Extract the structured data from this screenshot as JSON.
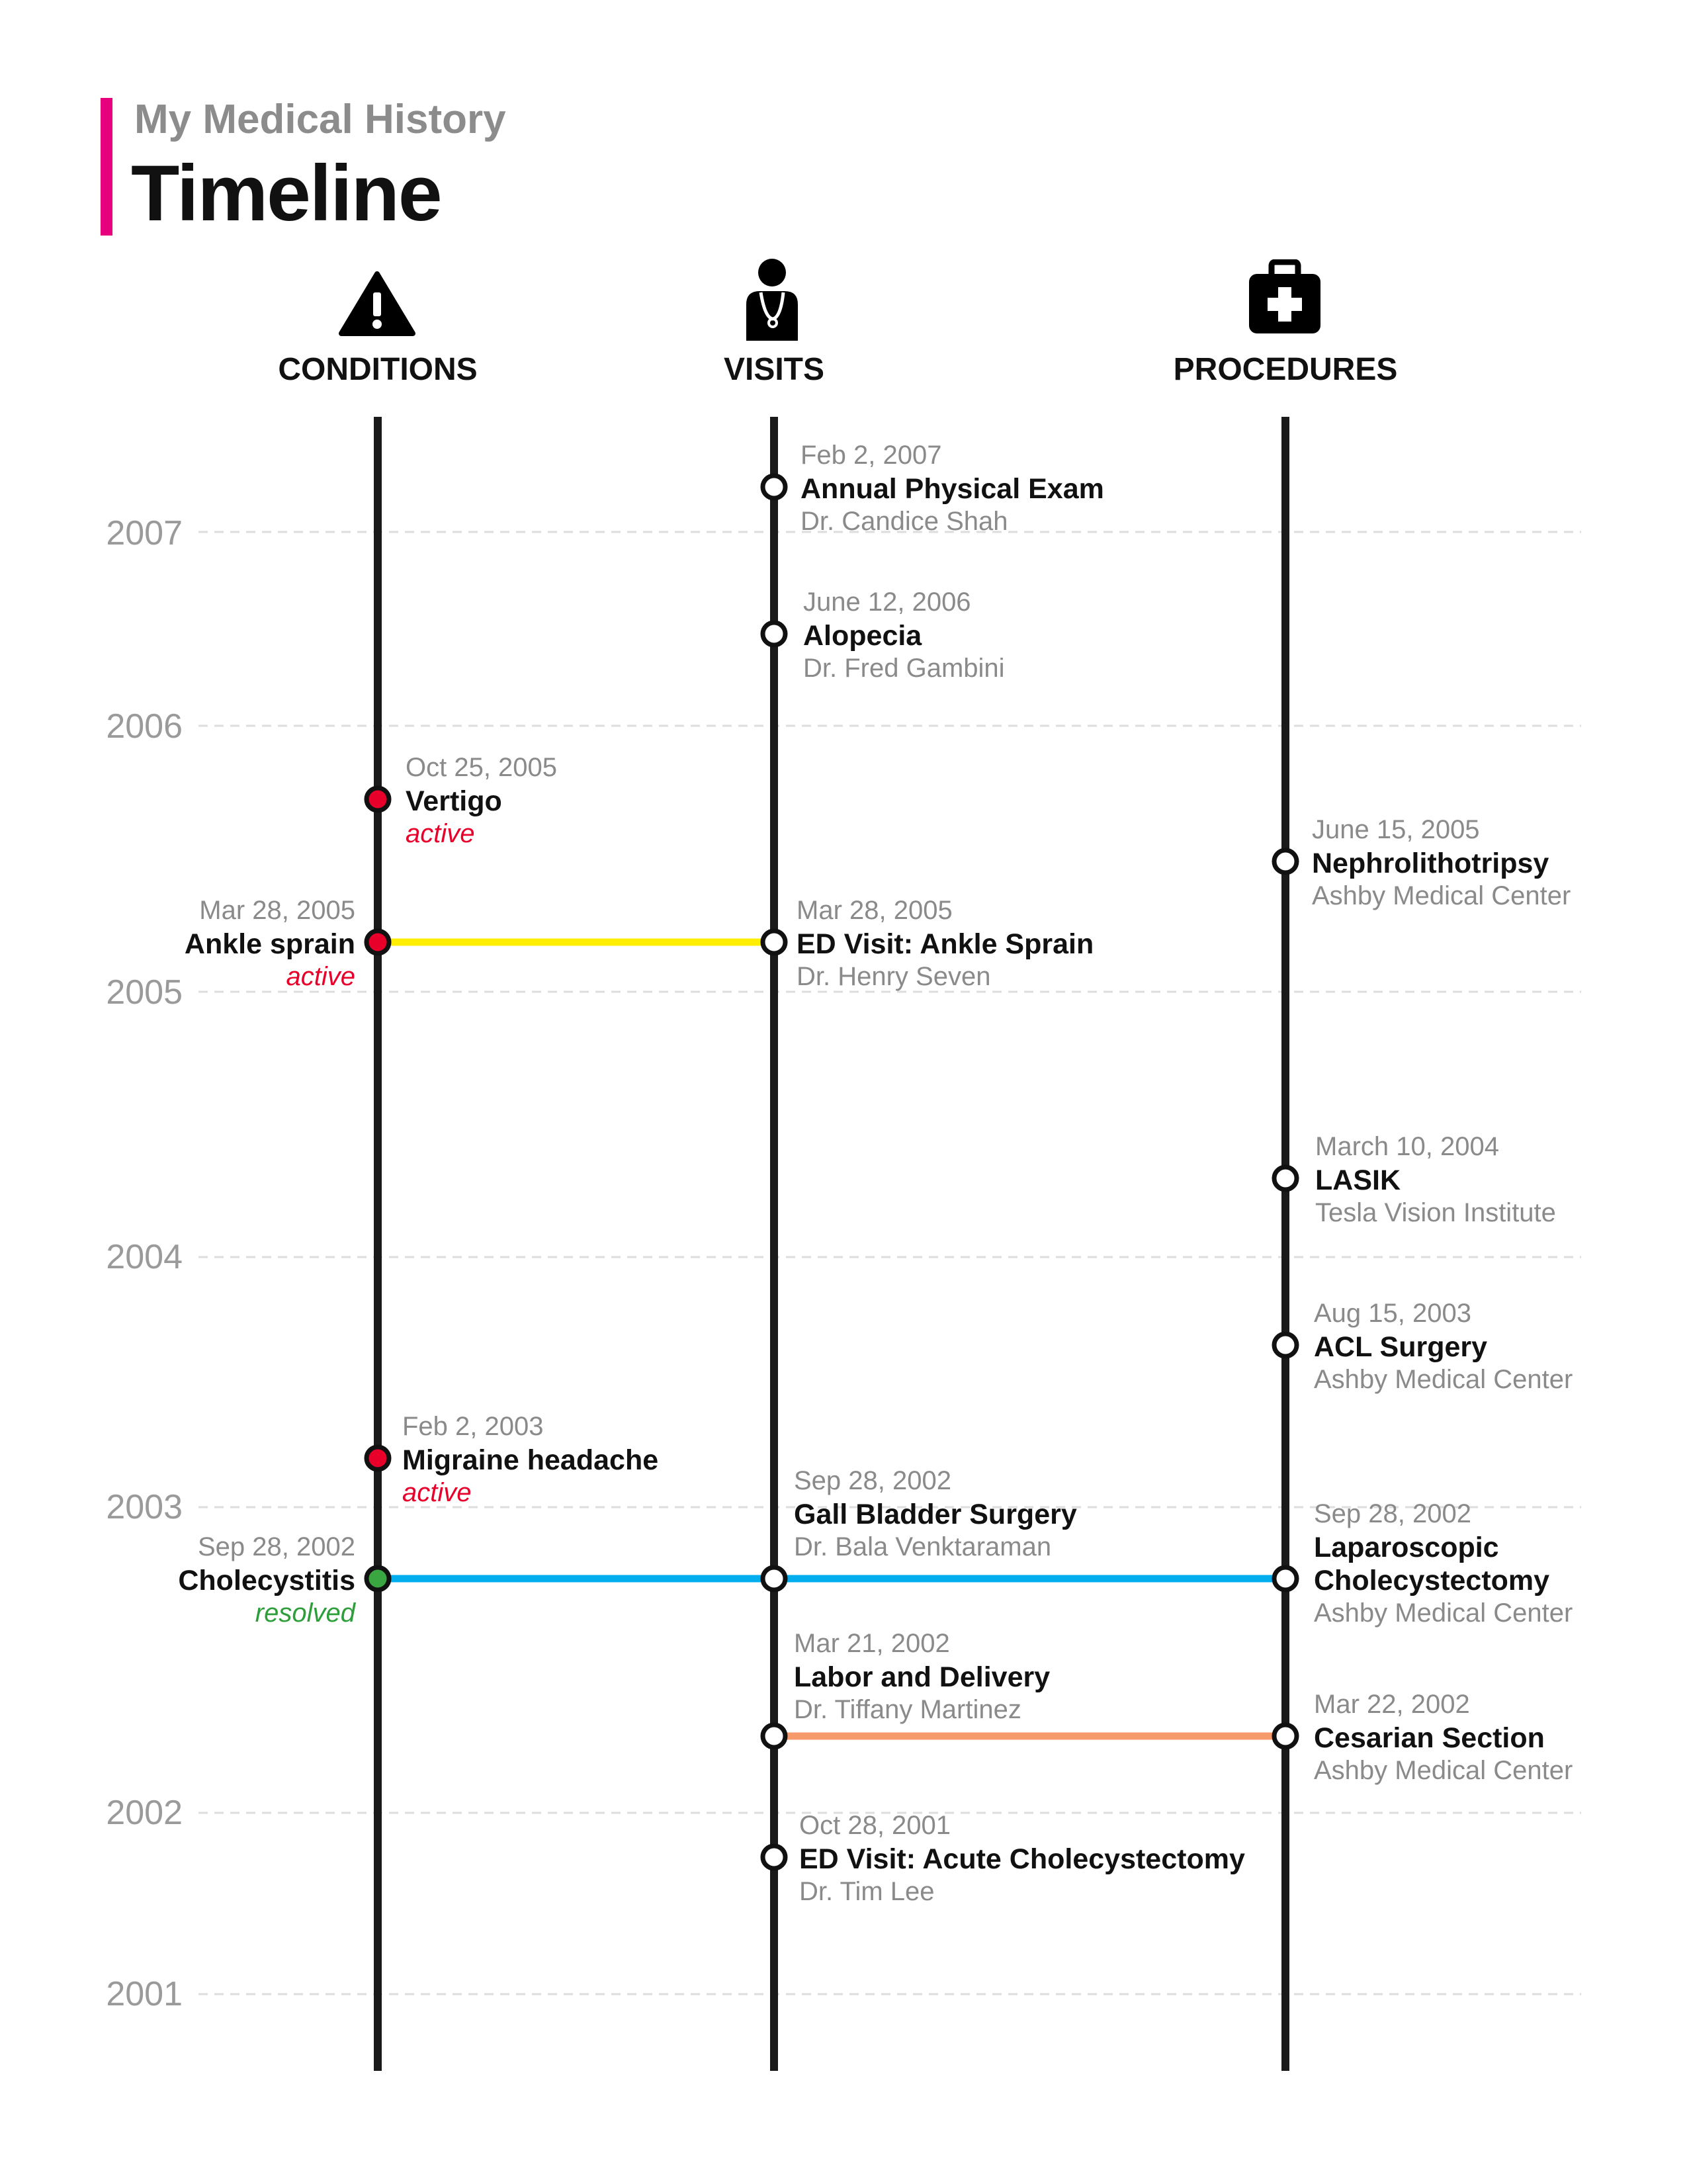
{
  "header": {
    "subtitle": "My Medical History",
    "title": "Timeline",
    "accent_color": "#e6007e"
  },
  "columns": [
    {
      "key": "conditions",
      "label": "CONDITIONS",
      "icon": "warning-triangle-icon"
    },
    {
      "key": "visits",
      "label": "VISITS",
      "icon": "doctor-icon"
    },
    {
      "key": "procedures",
      "label": "PROCEDURES",
      "icon": "medical-kit-icon"
    }
  ],
  "years": [
    "2007",
    "2006",
    "2005",
    "2004",
    "2003",
    "2002",
    "2001"
  ],
  "conditions": [
    {
      "date": "Oct 25, 2005",
      "name": "Vertigo",
      "status": "active",
      "status_color": "#e8002b"
    },
    {
      "date": "Mar 28, 2005",
      "name": "Ankle sprain",
      "status": "active",
      "status_color": "#e8002b"
    },
    {
      "date": "Feb 2, 2003",
      "name": "Migraine headache",
      "status": "active",
      "status_color": "#e8002b"
    },
    {
      "date": "Sep 28, 2002",
      "name": "Cholecystitis",
      "status": "resolved",
      "status_color": "#2e9e3a"
    }
  ],
  "visits": [
    {
      "date": "Feb 2, 2007",
      "name": "Annual Physical Exam",
      "detail": "Dr. Candice Shah"
    },
    {
      "date": "June 12, 2006",
      "name": "Alopecia",
      "detail": "Dr. Fred Gambini"
    },
    {
      "date": "Mar 28, 2005",
      "name": "ED Visit: Ankle Sprain",
      "detail": "Dr. Henry Seven"
    },
    {
      "date": "Sep 28, 2002",
      "name": "Gall Bladder Surgery",
      "detail": "Dr. Bala Venktaraman"
    },
    {
      "date": "Mar 21, 2002",
      "name": "Labor and Delivery",
      "detail": "Dr. Tiffany Martinez"
    },
    {
      "date": "Oct 28, 2001",
      "name": "ED Visit: Acute Cholecystectomy",
      "detail": "Dr. Tim Lee"
    }
  ],
  "procedures": [
    {
      "date": "June 15, 2005",
      "name": "Nephrolithotripsy",
      "detail": "Ashby Medical Center"
    },
    {
      "date": "March 10, 2004",
      "name": "LASIK",
      "detail": "Tesla Vision Institute"
    },
    {
      "date": "Aug 15, 2003",
      "name": "ACL Surgery",
      "detail": "Ashby Medical Center"
    },
    {
      "date": "Sep 28, 2002",
      "name": "Laparoscopic",
      "name_line2": "Cholecystectomy",
      "detail": "Ashby Medical Center"
    },
    {
      "date": "Mar 22, 2002",
      "name": "Cesarian Section",
      "detail": "Ashby Medical Center"
    }
  ],
  "links": [
    {
      "from": "Ankle sprain",
      "to": "ED Visit: Ankle Sprain",
      "color": "#ffee00"
    },
    {
      "from": "Cholecystitis",
      "to": "Laparoscopic Cholecystectomy",
      "color": "#00aeef"
    },
    {
      "from": "Labor and Delivery",
      "to": "Cesarian Section",
      "color": "#f79a6b"
    }
  ]
}
